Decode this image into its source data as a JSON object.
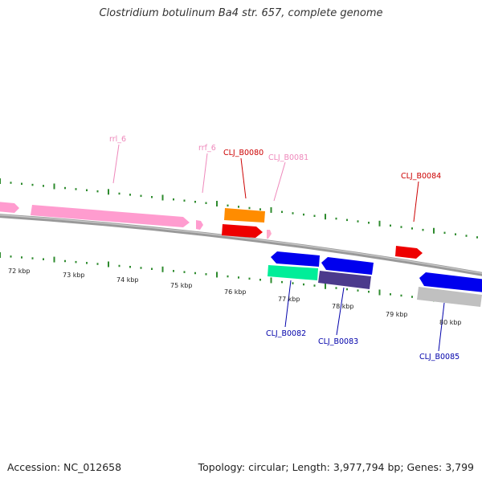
{
  "title": "Clostridium botulinum Ba4 str. 657, complete genome",
  "accession": "Accession: NC_012658",
  "stats": "Topology: circular; Length: 3,977,794 bp; Genes: 3,799",
  "colors": {
    "backbone": "#888888",
    "tick": "#2e8b2e",
    "rrl": "#ff9ccf",
    "label_red": "#cc0000",
    "label_pink": "#ee88bb",
    "label_blue": "#0000aa"
  },
  "kbp_labels": [
    "72 kbp",
    "73 kbp",
    "74 kbp",
    "75 kbp",
    "76 kbp",
    "77 kbp",
    "78 kbp",
    "79 kbp",
    "80 kbp"
  ],
  "feature_labels": {
    "rrl_6": "rrl_6",
    "rrf_6": "rrf_6",
    "b0080": "CLJ_B0080",
    "b0081": "CLJ_B0081",
    "b0084": "CLJ_B0084",
    "b0082": "CLJ_B0082",
    "b0083": "CLJ_B0083",
    "b0085": "CLJ_B0085"
  }
}
